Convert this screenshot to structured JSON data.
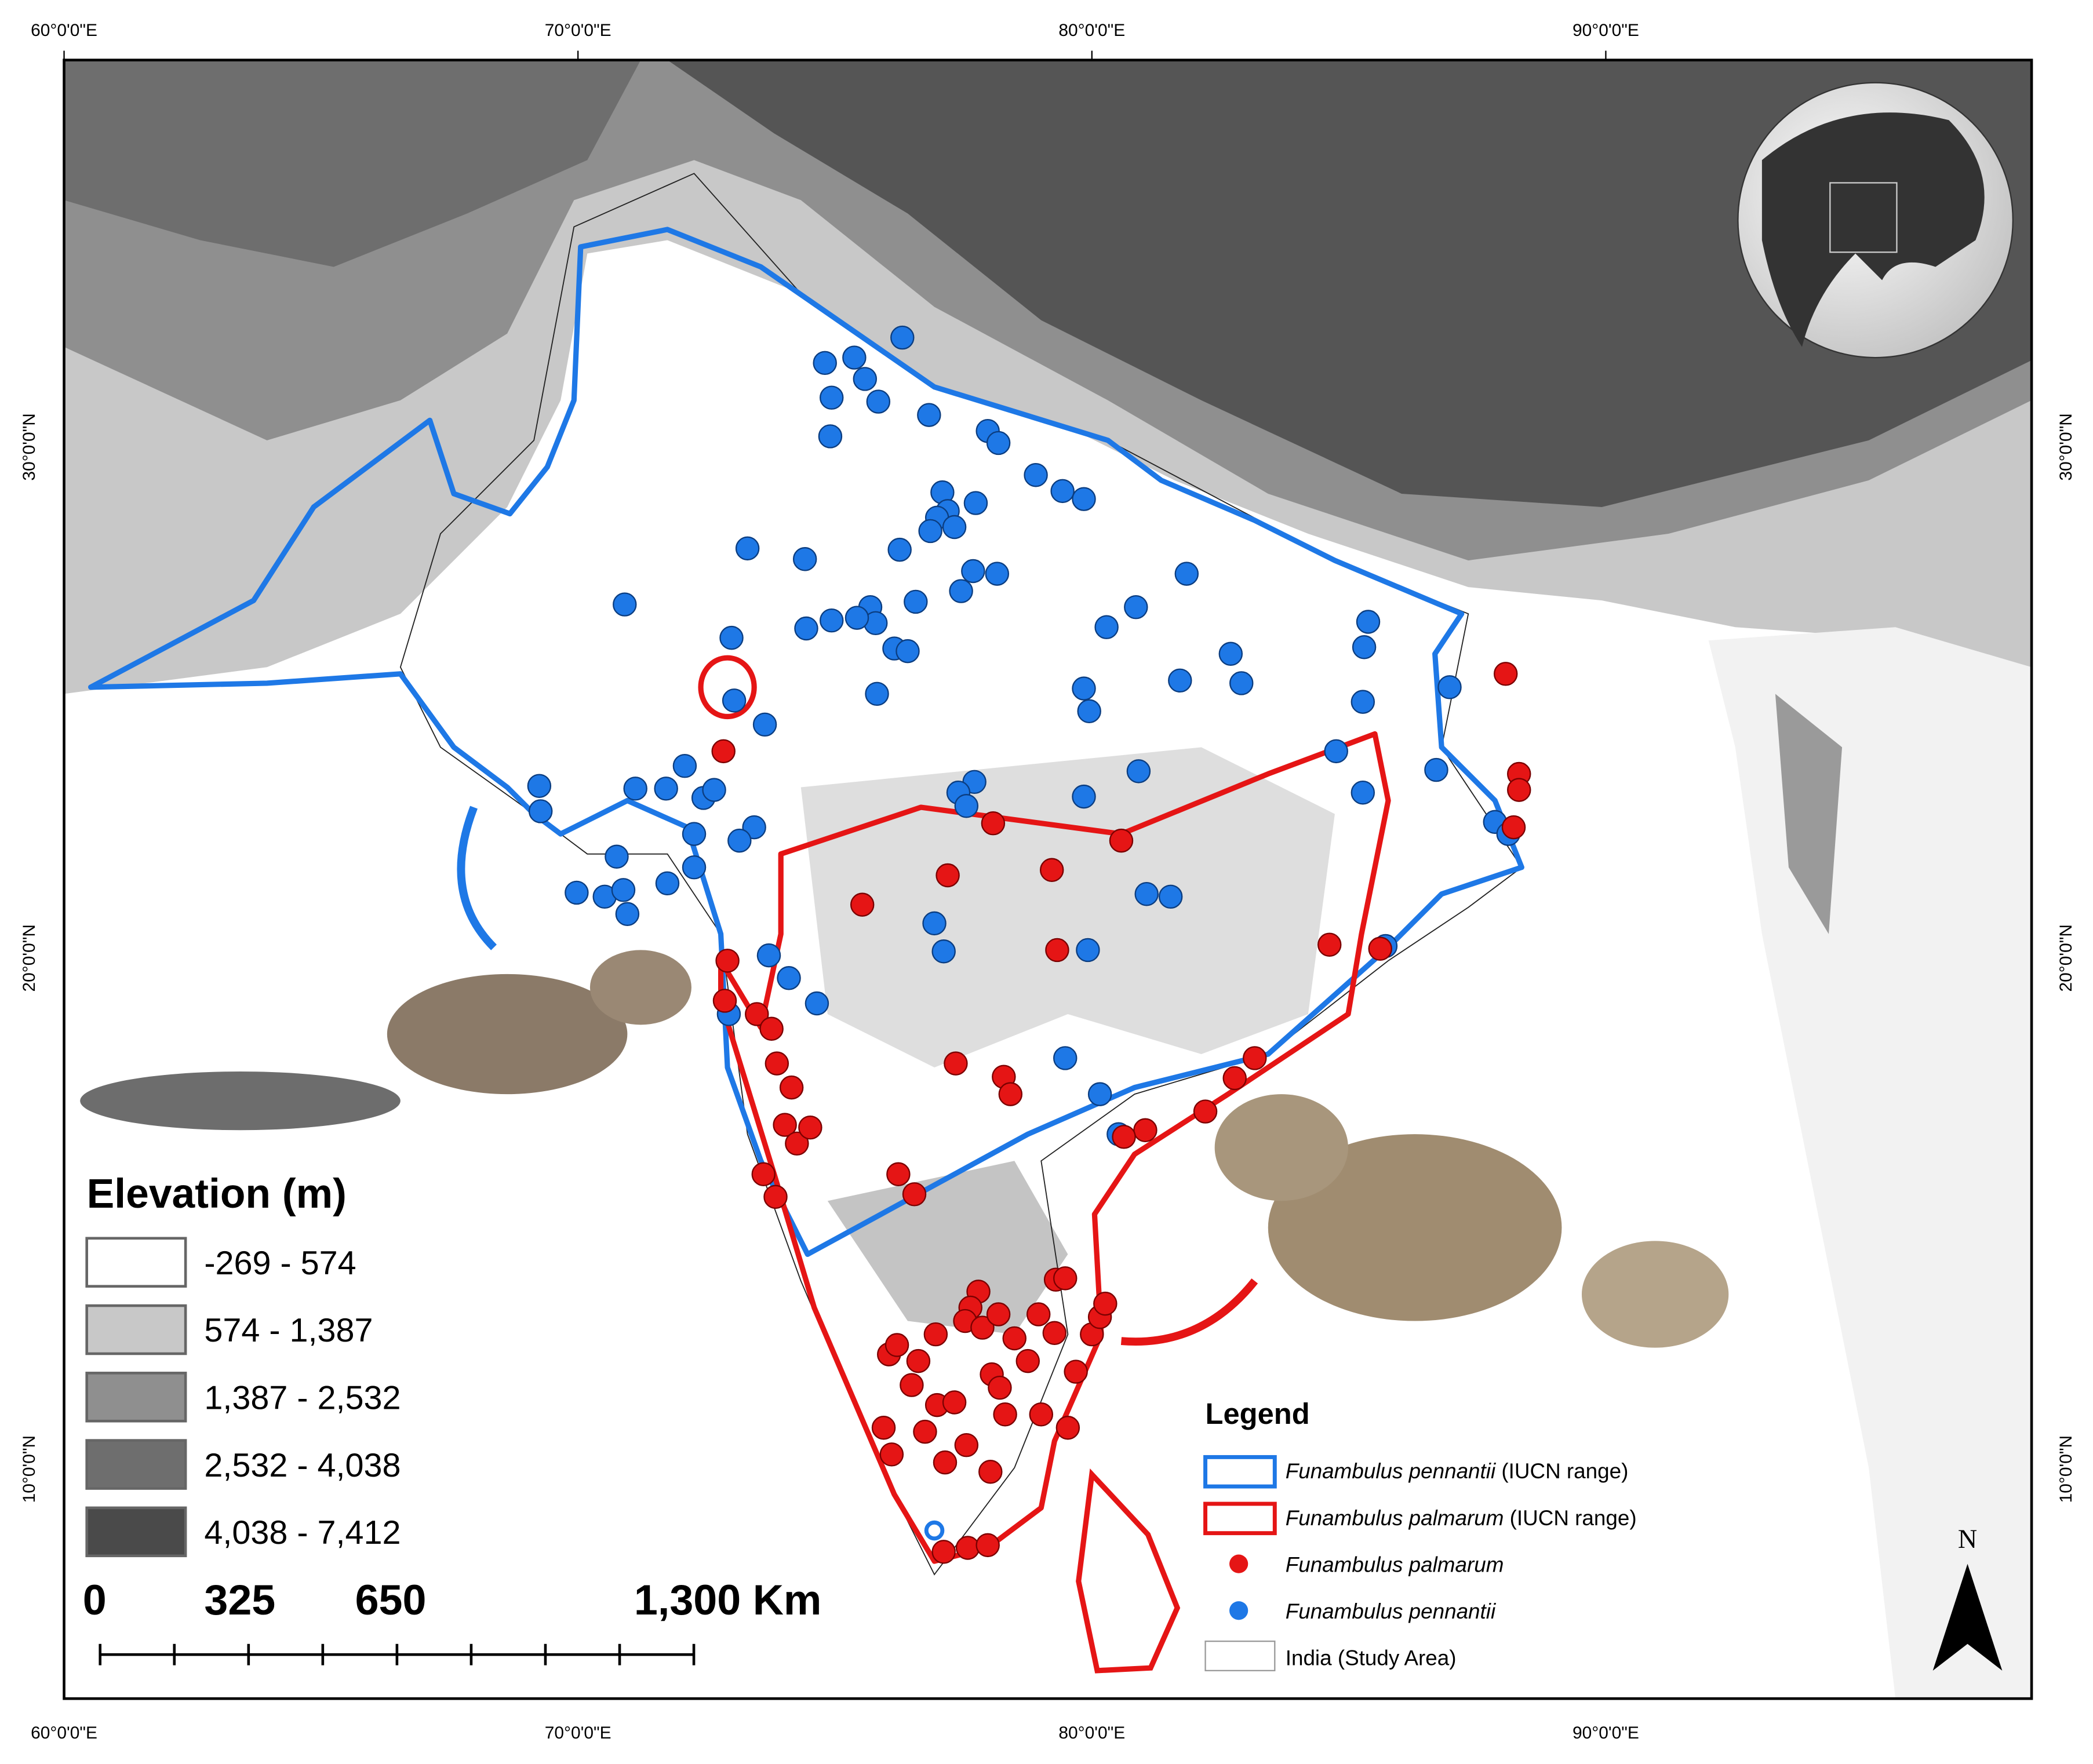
{
  "map": {
    "longitude_labels": [
      "60°0'0\"E",
      "70°0'0\"E",
      "80°0'0\"E",
      "90°0'0\"E"
    ],
    "latitude_labels": [
      "30°0'0\"N",
      "20°0'0\"N",
      "10°0'0\"N"
    ],
    "north_arrow": "N"
  },
  "elevation_legend": {
    "title": "Elevation (m)",
    "classes": [
      "-269 - 574",
      "574 - 1,387",
      "1,387 - 2,532",
      "2,532 - 4,038",
      "4,038 - 7,412"
    ]
  },
  "scale_bar": {
    "labels": [
      "0",
      "325",
      "650",
      "1,300 Km"
    ]
  },
  "legend": {
    "title": "Legend",
    "items": [
      {
        "species": "Funambulus pennantii",
        "note": " (IUCN range)"
      },
      {
        "species": "Funambulus palmarum",
        "note": " (IUCN range)"
      },
      {
        "species": "Funambulus palmarum"
      },
      {
        "species": "Funambulus pennantii"
      },
      {
        "species": "India (Study Area)"
      }
    ]
  }
}
